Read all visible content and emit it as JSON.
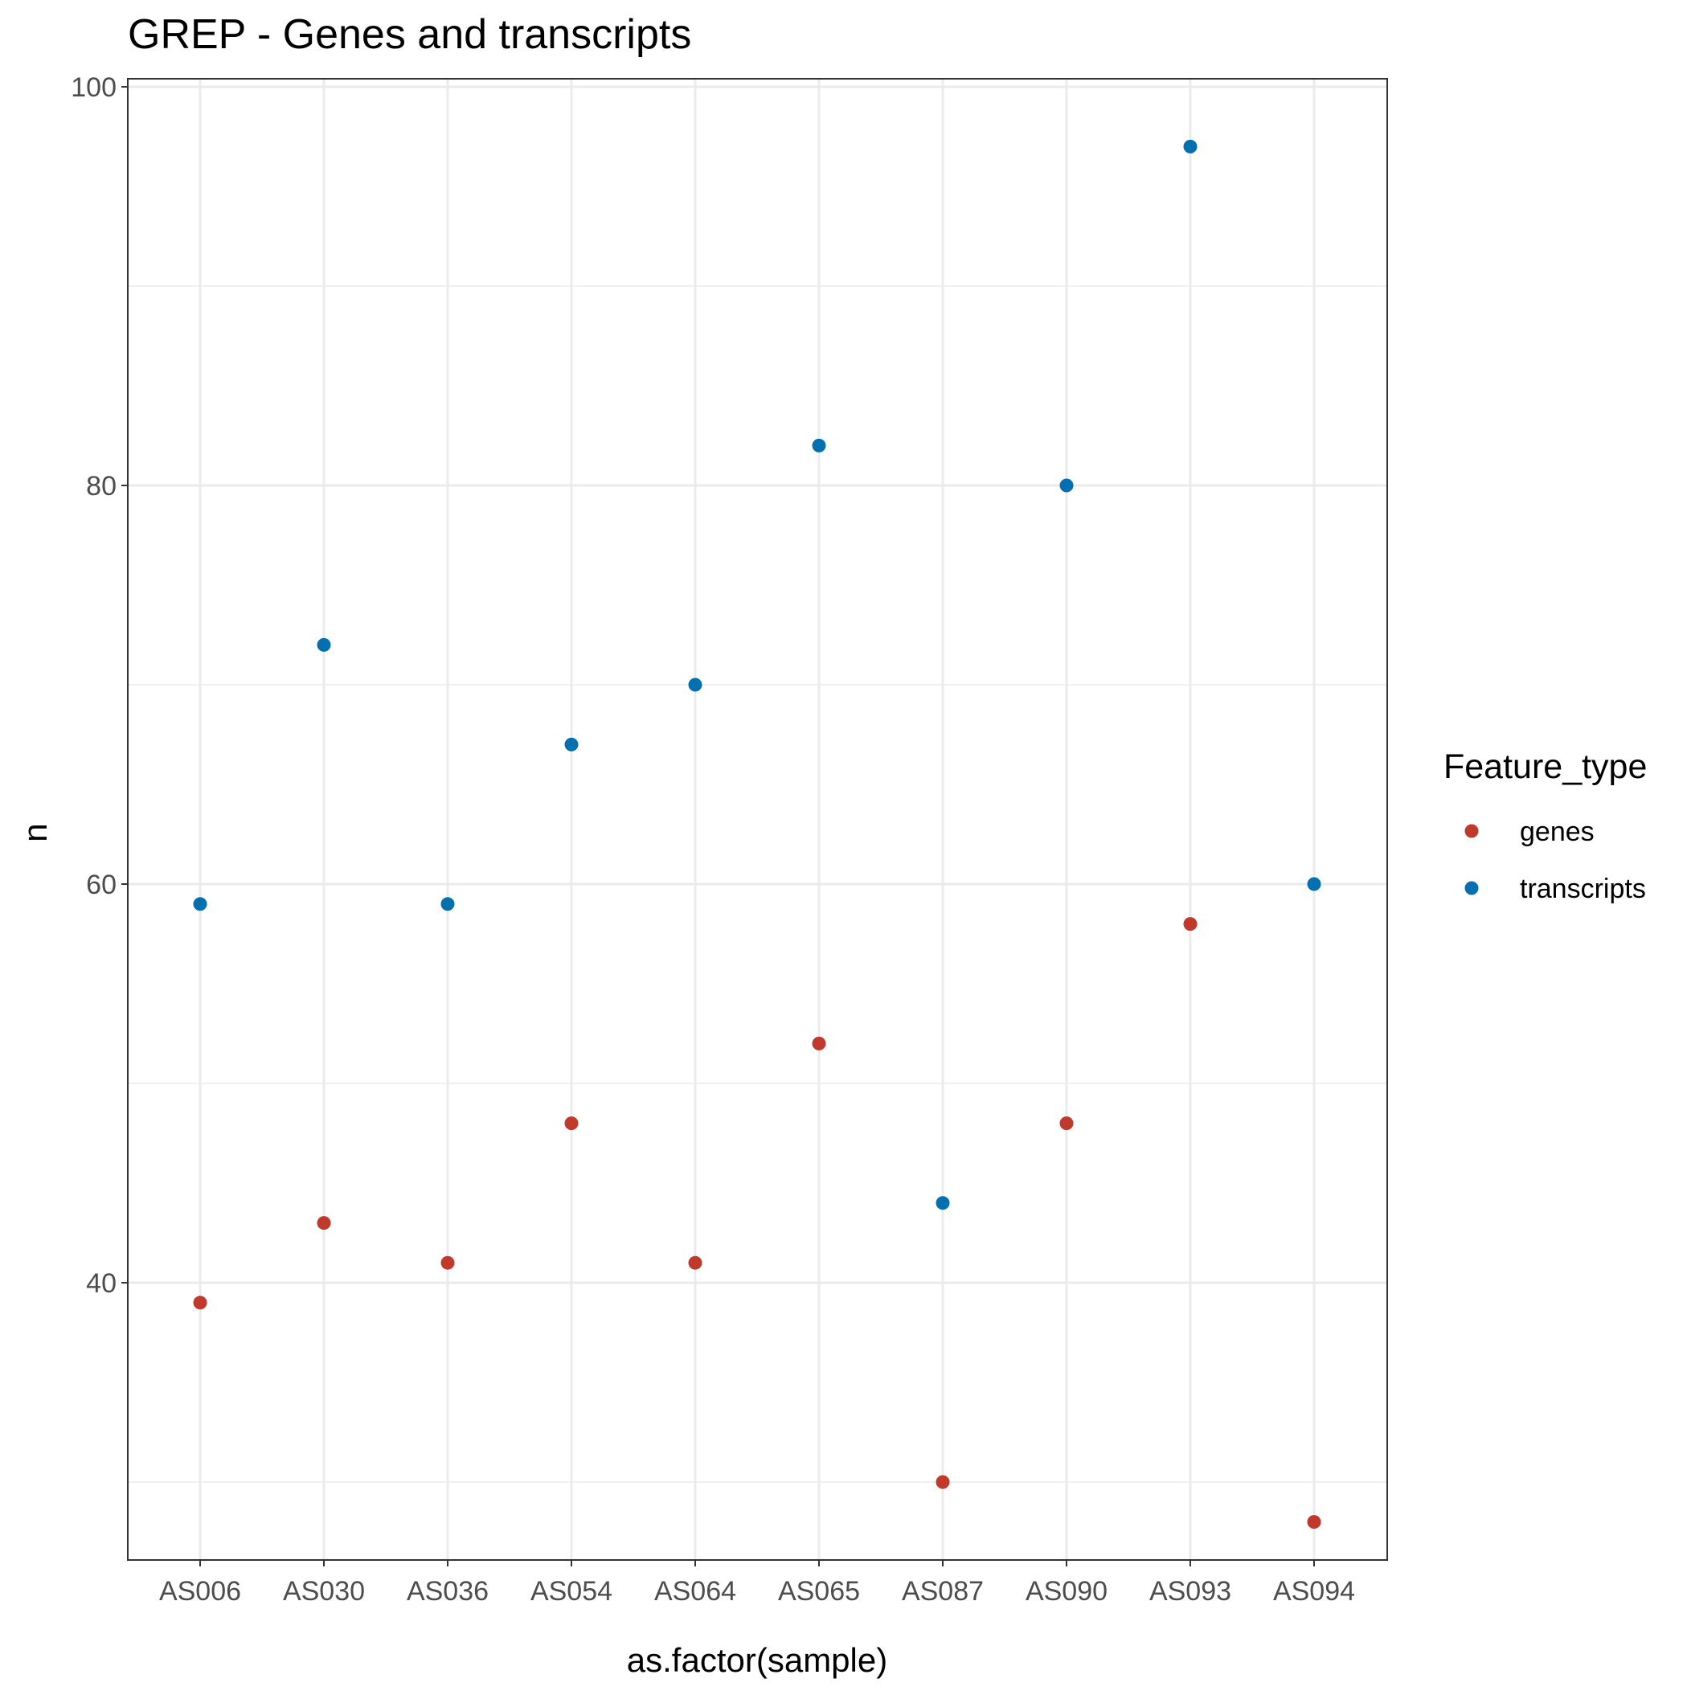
{
  "chart_data": {
    "type": "scatter",
    "title": "GREP - Genes and transcripts",
    "xlabel": "as.factor(sample)",
    "ylabel": "n",
    "categories": [
      "AS006",
      "AS030",
      "AS036",
      "AS054",
      "AS064",
      "AS065",
      "AS087",
      "AS090",
      "AS093",
      "AS094"
    ],
    "ylim": [
      24.9,
      100.4
    ],
    "yticks": [
      40,
      60,
      80,
      100
    ],
    "y_minor_ticks": [
      30,
      50,
      70,
      90
    ],
    "grid": true,
    "legend": {
      "title": "Feature_type",
      "placement": "right"
    },
    "series": [
      {
        "name": "genes",
        "color": "#c0392b",
        "values": [
          39,
          43,
          41,
          48,
          41,
          52,
          30,
          48,
          58,
          28
        ]
      },
      {
        "name": "transcripts",
        "color": "#0570b0",
        "values": [
          59,
          72,
          59,
          67,
          70,
          82,
          44,
          80,
          97,
          60
        ]
      }
    ]
  }
}
